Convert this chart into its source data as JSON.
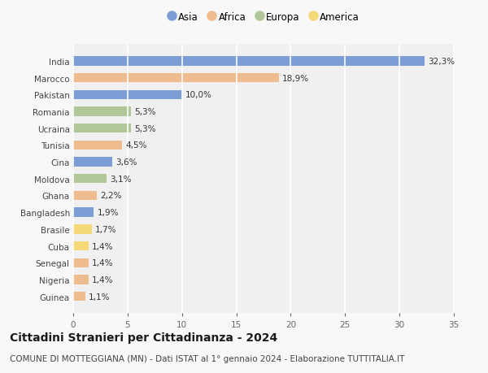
{
  "countries": [
    "India",
    "Marocco",
    "Pakistan",
    "Romania",
    "Ucraina",
    "Tunisia",
    "Cina",
    "Moldova",
    "Ghana",
    "Bangladesh",
    "Brasile",
    "Cuba",
    "Senegal",
    "Nigeria",
    "Guinea"
  ],
  "values": [
    32.3,
    18.9,
    10.0,
    5.3,
    5.3,
    4.5,
    3.6,
    3.1,
    2.2,
    1.9,
    1.7,
    1.4,
    1.4,
    1.4,
    1.1
  ],
  "labels": [
    "32,3%",
    "18,9%",
    "10,0%",
    "5,3%",
    "5,3%",
    "4,5%",
    "3,6%",
    "3,1%",
    "2,2%",
    "1,9%",
    "1,7%",
    "1,4%",
    "1,4%",
    "1,4%",
    "1,1%"
  ],
  "continents": [
    "Asia",
    "Africa",
    "Asia",
    "Europa",
    "Europa",
    "Africa",
    "Asia",
    "Europa",
    "Africa",
    "Asia",
    "America",
    "America",
    "Africa",
    "Africa",
    "Africa"
  ],
  "colors": {
    "Asia": "#7b9fd4",
    "Africa": "#eebc8e",
    "Europa": "#b0c898",
    "America": "#f5d878"
  },
  "legend_order": [
    "Asia",
    "Africa",
    "Europa",
    "America"
  ],
  "title": "Cittadini Stranieri per Cittadinanza - 2024",
  "subtitle": "COMUNE DI MOTTEGGIANA (MN) - Dati ISTAT al 1° gennaio 2024 - Elaborazione TUTTITALIA.IT",
  "xlim": [
    0,
    35
  ],
  "xticks": [
    0,
    5,
    10,
    15,
    20,
    25,
    30,
    35
  ],
  "plot_bg": "#f0f0f0",
  "fig_bg": "#f8f8f8",
  "grid_color": "#ffffff",
  "title_fontsize": 10,
  "subtitle_fontsize": 7.5,
  "bar_fontsize": 7.5,
  "legend_fontsize": 8.5,
  "ytick_fontsize": 7.5,
  "xtick_fontsize": 7.5
}
